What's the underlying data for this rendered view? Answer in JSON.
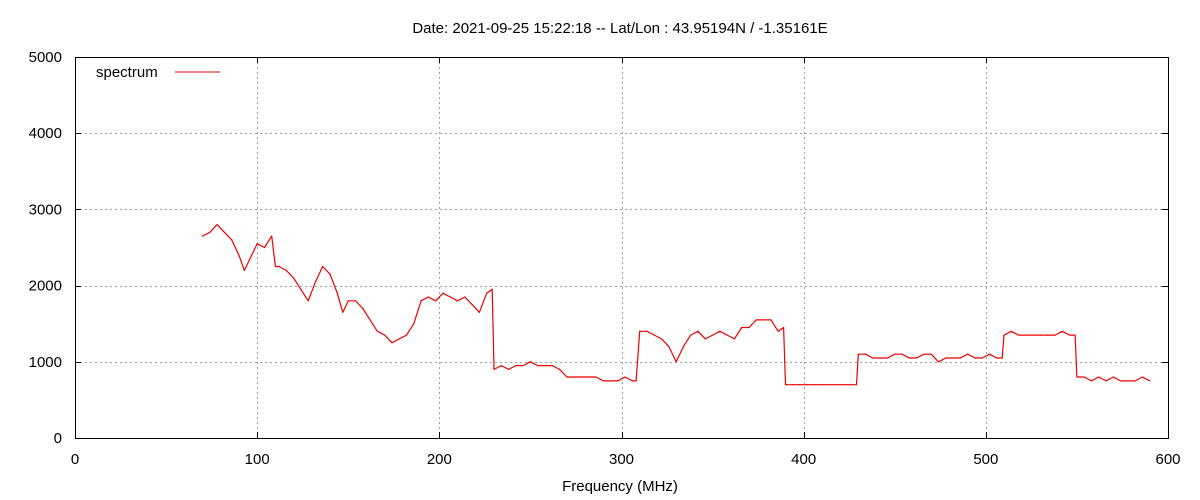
{
  "chart_data": {
    "type": "line",
    "title": "Date: 2021-09-25 15:22:18  --  Lat/Lon : 43.95194N / -1.35161E",
    "xlabel": "Frequency (MHz)",
    "ylabel": "",
    "xlim": [
      0,
      600
    ],
    "ylim": [
      0,
      5000
    ],
    "x_ticks": [
      0,
      100,
      200,
      300,
      400,
      500,
      600
    ],
    "y_ticks": [
      0,
      1000,
      2000,
      3000,
      4000,
      5000
    ],
    "grid": true,
    "legend_position": "top-left",
    "series": [
      {
        "name": "spectrum",
        "color": "#ee0000",
        "x": [
          70,
          74,
          78,
          82,
          86,
          90,
          93,
          96,
          100,
          104,
          108,
          110,
          112,
          116,
          120,
          124,
          128,
          132,
          136,
          140,
          144,
          147,
          150,
          154,
          158,
          162,
          166,
          170,
          174,
          178,
          182,
          186,
          190,
          194,
          198,
          202,
          206,
          210,
          214,
          218,
          222,
          226,
          229,
          230,
          234,
          238,
          242,
          246,
          250,
          254,
          258,
          262,
          266,
          270,
          274,
          278,
          282,
          286,
          290,
          294,
          298,
          302,
          306,
          308,
          310,
          314,
          318,
          322,
          326,
          330,
          334,
          338,
          342,
          346,
          350,
          354,
          358,
          362,
          366,
          370,
          374,
          378,
          382,
          386,
          389,
          390,
          394,
          398,
          402,
          406,
          410,
          414,
          418,
          422,
          426,
          429,
          430,
          434,
          438,
          442,
          446,
          450,
          454,
          458,
          462,
          466,
          470,
          474,
          478,
          482,
          486,
          490,
          494,
          498,
          502,
          506,
          509,
          510,
          514,
          518,
          522,
          526,
          530,
          534,
          538,
          542,
          546,
          549,
          550,
          554,
          558,
          562,
          566,
          570,
          574,
          578,
          582,
          586,
          590
        ],
        "values": [
          2650,
          2700,
          2800,
          2700,
          2600,
          2400,
          2200,
          2350,
          2550,
          2500,
          2650,
          2250,
          2250,
          2200,
          2100,
          1950,
          1800,
          2050,
          2250,
          2150,
          1900,
          1650,
          1800,
          1800,
          1700,
          1550,
          1400,
          1350,
          1250,
          1300,
          1350,
          1500,
          1800,
          1850,
          1800,
          1900,
          1850,
          1800,
          1850,
          1750,
          1650,
          1900,
          1950,
          900,
          950,
          900,
          950,
          950,
          1000,
          950,
          950,
          950,
          900,
          800,
          800,
          800,
          800,
          800,
          750,
          750,
          750,
          800,
          750,
          750,
          1400,
          1400,
          1350,
          1300,
          1200,
          1000,
          1200,
          1350,
          1400,
          1300,
          1350,
          1400,
          1350,
          1300,
          1450,
          1450,
          1550,
          1550,
          1550,
          1400,
          1450,
          700,
          700,
          700,
          700,
          700,
          700,
          700,
          700,
          700,
          700,
          700,
          1100,
          1100,
          1050,
          1050,
          1050,
          1100,
          1100,
          1050,
          1050,
          1100,
          1100,
          1000,
          1050,
          1050,
          1050,
          1100,
          1050,
          1050,
          1100,
          1050,
          1050,
          1350,
          1400,
          1350,
          1350,
          1350,
          1350,
          1350,
          1350,
          1400,
          1350,
          1350,
          800,
          800,
          750,
          800,
          750,
          800,
          750,
          750,
          750,
          800,
          750
        ]
      }
    ]
  }
}
